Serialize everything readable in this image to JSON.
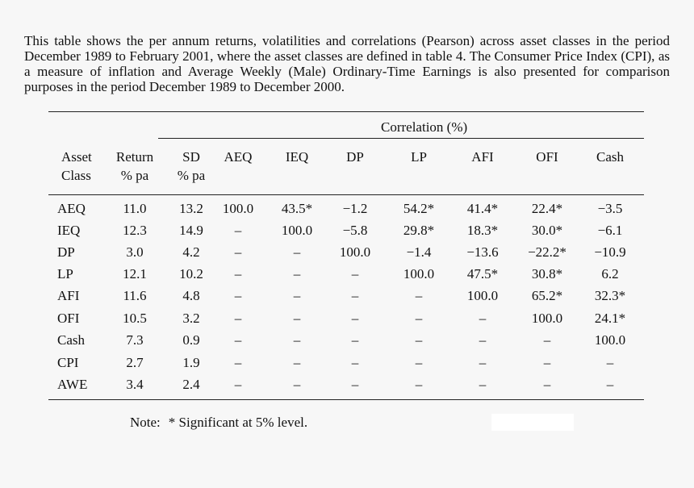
{
  "caption": "This table shows the per annum returns, volatilities and correlations (Pearson) across asset classes in the period December 1989 to February 2001, where the asset classes are defined in table 4. The Consumer Price Index (CPI), as a measure of inflation and Average Weekly (Male) Ordinary-Time Earnings is also presented for comparison purposes in the period December 1989 to December 2000.",
  "table": {
    "group_header": "Correlation (%)",
    "columns": [
      {
        "line1": "Asset",
        "line2": "Class"
      },
      {
        "line1": "Return",
        "line2": "% pa"
      },
      {
        "line1": "SD",
        "line2": "% pa"
      },
      {
        "line1": "AEQ",
        "line2": ""
      },
      {
        "line1": "IEQ",
        "line2": ""
      },
      {
        "line1": "DP",
        "line2": ""
      },
      {
        "line1": "LP",
        "line2": ""
      },
      {
        "line1": "AFI",
        "line2": ""
      },
      {
        "line1": "OFI",
        "line2": ""
      },
      {
        "line1": "Cash",
        "line2": ""
      }
    ],
    "rows": [
      [
        "AEQ",
        "11.0",
        "13.2",
        "100.0",
        "43.5*",
        "−1.2",
        "54.2*",
        "41.4*",
        "22.4*",
        "−3.5"
      ],
      [
        "IEQ",
        "12.3",
        "14.9",
        "–",
        "100.0",
        "−5.8",
        "29.8*",
        "18.3*",
        "30.0*",
        "−6.1"
      ],
      [
        "DP",
        "3.0",
        "4.2",
        "–",
        "–",
        "100.0",
        "−1.4",
        "−13.6",
        "−22.2*",
        "−10.9"
      ],
      [
        "LP",
        "12.1",
        "10.2",
        "–",
        "–",
        "–",
        "100.0",
        "47.5*",
        "30.8*",
        "6.2"
      ],
      [
        "AFI",
        "11.6",
        "4.8",
        "–",
        "–",
        "–",
        "–",
        "100.0",
        "65.2*",
        "32.3*"
      ],
      [
        "OFI",
        "10.5",
        "3.2",
        "–",
        "–",
        "–",
        "–",
        "–",
        "100.0",
        "24.1*"
      ],
      [
        "Cash",
        "7.3",
        "0.9",
        "–",
        "–",
        "–",
        "–",
        "–",
        "–",
        "100.0"
      ],
      [
        "CPI",
        "2.7",
        "1.9",
        "–",
        "–",
        "–",
        "–",
        "–",
        "–",
        "–"
      ],
      [
        "AWE",
        "3.4",
        "2.4",
        "–",
        "–",
        "–",
        "–",
        "–",
        "–",
        "–"
      ]
    ]
  },
  "note": {
    "label": "Note:",
    "text": "* Significant at 5% level."
  }
}
